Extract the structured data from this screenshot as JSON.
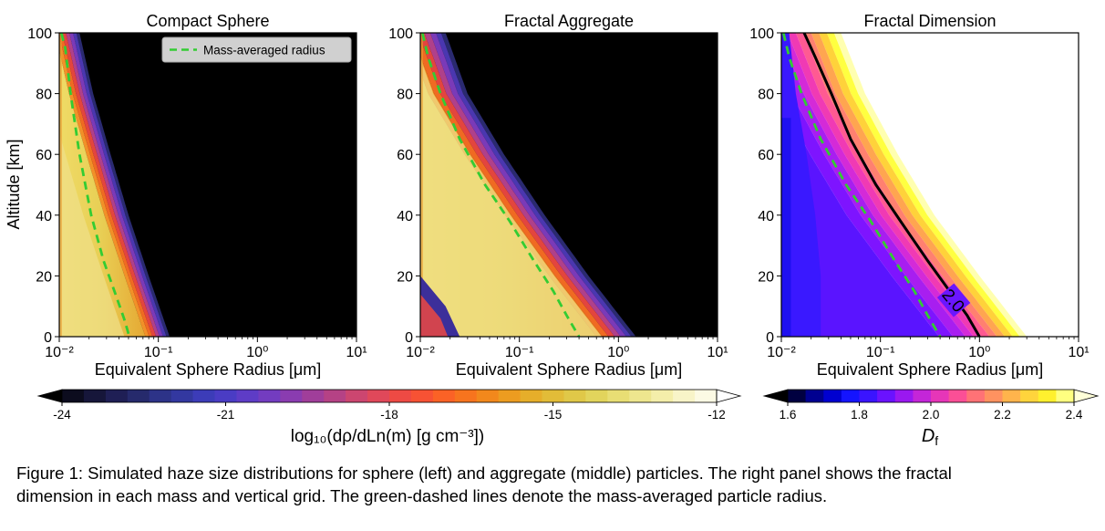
{
  "chart_data": [
    {
      "type": "heatmap",
      "title": "Compact Sphere",
      "xlabel": "Equivalent Sphere Radius [μm]",
      "ylabel": "Altitude [km]",
      "xscale": "log",
      "xlim": [
        0.01,
        10
      ],
      "ylim": [
        0,
        100
      ],
      "x_ticks": [
        "10⁻²",
        "10⁻¹",
        "10⁰",
        "10¹"
      ],
      "y_ticks": [
        "0",
        "20",
        "40",
        "60",
        "80",
        "100"
      ],
      "legend": {
        "entry": "Mass-averaged radius",
        "placement": "top-right",
        "style": "green dashed"
      },
      "series": [
        {
          "name": "Mass-averaged radius",
          "x": [
            0.0105,
            0.0115,
            0.013,
            0.016,
            0.021,
            0.028,
            0.036,
            0.045,
            0.051
          ],
          "y": [
            100,
            95,
            80,
            60,
            40,
            25,
            15,
            6,
            0
          ]
        }
      ],
      "upper_edge_radius": {
        "altitude": [
          100,
          80,
          60,
          40,
          20,
          0
        ],
        "radius": [
          0.016,
          0.022,
          0.033,
          0.05,
          0.08,
          0.13
        ]
      }
    },
    {
      "type": "heatmap",
      "title": "Fractal Aggregate",
      "xlabel": "Equivalent Sphere Radius [μm]",
      "xscale": "log",
      "xlim": [
        0.01,
        10
      ],
      "ylim": [
        0,
        100
      ],
      "x_ticks": [
        "10⁻²",
        "10⁻¹",
        "10⁰",
        "10¹"
      ],
      "y_ticks": [
        "0",
        "20",
        "40",
        "60",
        "80",
        "100"
      ],
      "series": [
        {
          "name": "Mass-averaged radius",
          "x": [
            0.0105,
            0.012,
            0.016,
            0.025,
            0.045,
            0.08,
            0.14,
            0.22,
            0.3,
            0.4
          ],
          "y": [
            100,
            92,
            80,
            65,
            50,
            38,
            25,
            15,
            7,
            0
          ]
        }
      ],
      "upper_edge_radius": {
        "altitude": [
          100,
          80,
          60,
          40,
          20,
          0
        ],
        "radius": [
          0.018,
          0.03,
          0.07,
          0.18,
          0.5,
          1.5
        ]
      }
    },
    {
      "type": "heatmap",
      "title": "Fractal Dimension",
      "xlabel": "Equivalent Sphere Radius [μm]",
      "xscale": "log",
      "xlim": [
        0.01,
        10
      ],
      "ylim": [
        0,
        100
      ],
      "x_ticks": [
        "10⁻²",
        "10⁻¹",
        "10⁰",
        "10¹"
      ],
      "y_ticks": [
        "0",
        "20",
        "40",
        "60",
        "80",
        "100"
      ],
      "contour_label": "2.0",
      "series": [
        {
          "name": "Mass-averaged radius",
          "x": [
            0.0105,
            0.012,
            0.016,
            0.025,
            0.045,
            0.08,
            0.14,
            0.22,
            0.3,
            0.4
          ],
          "y": [
            100,
            92,
            80,
            65,
            50,
            38,
            25,
            15,
            7,
            0
          ]
        },
        {
          "name": "Df = 2.0 contour",
          "x": [
            0.017,
            0.022,
            0.032,
            0.05,
            0.09,
            0.16,
            0.3,
            0.5,
            0.75,
            1.0
          ],
          "y": [
            100,
            92,
            80,
            65,
            50,
            38,
            25,
            15,
            7,
            0
          ]
        }
      ],
      "upper_edge_radius": {
        "altitude": [
          100,
          80,
          60,
          40,
          20,
          0
        ],
        "radius": [
          0.04,
          0.07,
          0.15,
          0.35,
          1.0,
          3.0
        ]
      }
    }
  ],
  "colorbars": [
    {
      "label": "log₁₀(dρ/dLn(m) [g cm⁻³])",
      "ticks": [
        "-24",
        "-21",
        "-18",
        "-15",
        "-12"
      ],
      "range": [
        -24,
        -12
      ],
      "colormap": "CMRmap"
    },
    {
      "label": "D",
      "label_sub": "f",
      "ticks": [
        "1.6",
        "1.8",
        "2.0",
        "2.2",
        "2.4"
      ],
      "range": [
        1.6,
        2.4
      ],
      "colormap": "gnuplot2"
    }
  ],
  "caption": {
    "line1": "Figure 1:  Simulated haze size distributions for sphere (left) and aggregate (middle) particles. The right panel shows the fractal",
    "line2": "dimension in each mass and vertical grid. The green-dashed lines denote the mass-averaged particle radius."
  },
  "colors": {
    "mass_line": "#33cc33",
    "background_void": "#000000"
  }
}
